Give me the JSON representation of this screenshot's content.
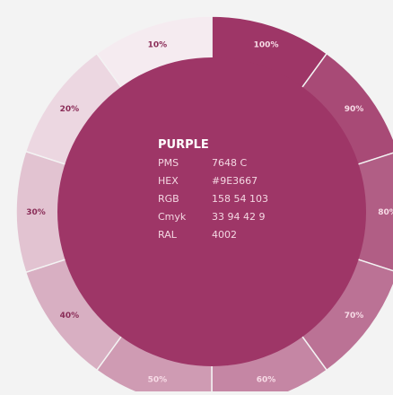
{
  "colors": {
    "background": "#f3f3f3",
    "base": "#9e3667",
    "ring_segment": "#b2557f",
    "ring_segment_dark": "#a1456f",
    "ring_segment_pale": "#f5e6ec",
    "label_on_dark": "#f7dbe6",
    "label_on_light": "#8a2d58"
  },
  "swatch": {
    "name": "PURPLE",
    "specs": [
      {
        "key": "PMS",
        "value": "7648 C"
      },
      {
        "key": "HEX",
        "value": "#9E3667"
      },
      {
        "key": "RGB",
        "value": "158 54 103"
      },
      {
        "key": "Cmyk",
        "value": "33 94 42 9"
      },
      {
        "key": "RAL",
        "value": "4002"
      }
    ]
  },
  "ring": {
    "segments": [
      {
        "label": "100%",
        "tint": 1.0
      },
      {
        "label": "90%",
        "tint": 0.9
      },
      {
        "label": "80%",
        "tint": 0.8
      },
      {
        "label": "70%",
        "tint": 0.7
      },
      {
        "label": "60%",
        "tint": 0.6
      },
      {
        "label": "50%",
        "tint": 0.5
      },
      {
        "label": "40%",
        "tint": 0.4
      },
      {
        "label": "30%",
        "tint": 0.3
      },
      {
        "label": "20%",
        "tint": 0.2
      },
      {
        "label": "10%",
        "tint": 0.1
      }
    ]
  }
}
